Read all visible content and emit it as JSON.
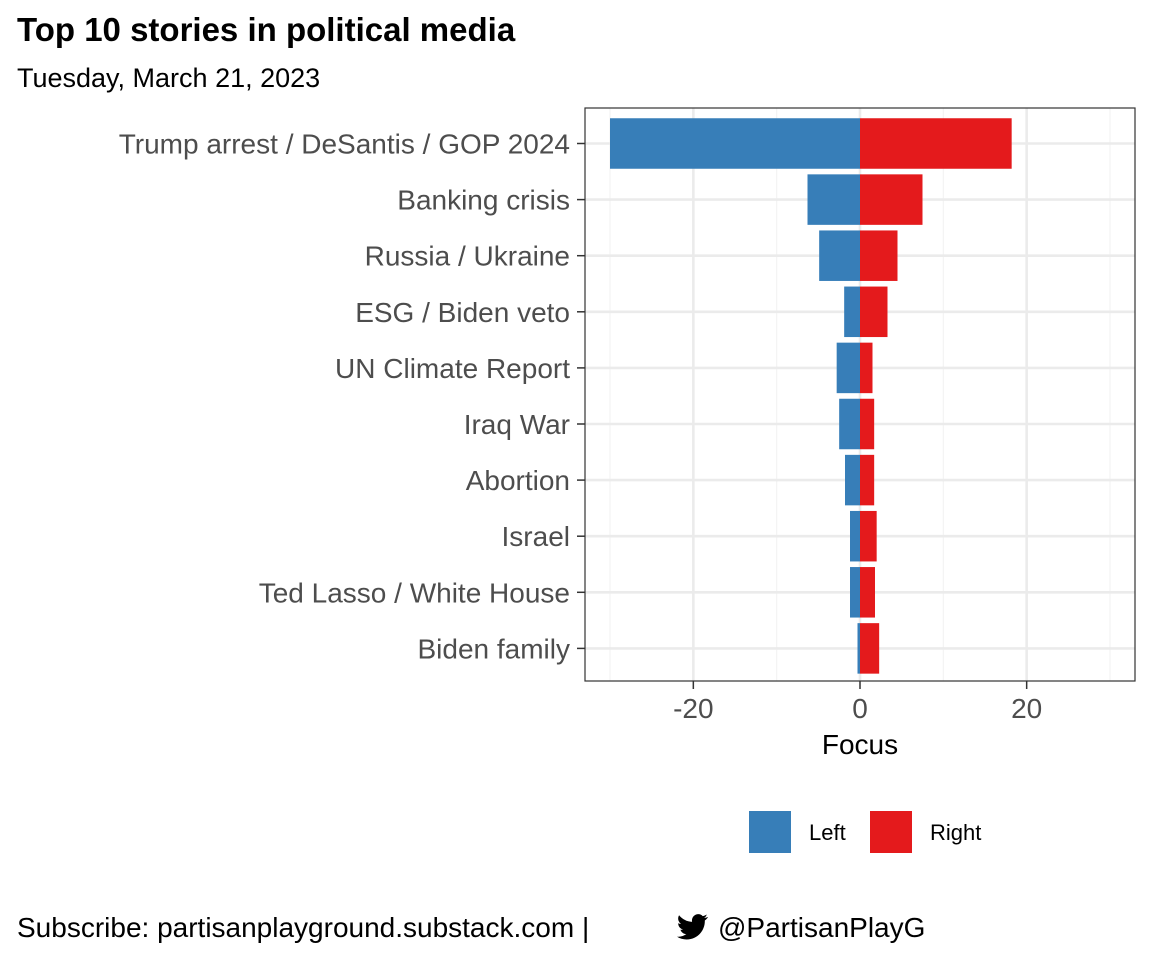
{
  "title": "Top 10 stories in political media",
  "subtitle": "Tuesday, March 21, 2023",
  "caption": {
    "prefix": "Subscribe: partisanplayground.substack.com |",
    "icon": "twitter-bird-icon",
    "handle": "@PartisanPlayG"
  },
  "chart_data": {
    "type": "bar",
    "orientation": "horizontal",
    "stacked": "diverging",
    "categories": [
      "Trump arrest / DeSantis / GOP 2024",
      "Banking crisis",
      "Russia / Ukraine",
      "ESG / Biden veto",
      "UN Climate Report",
      "Iraq War",
      "Abortion",
      "Israel",
      "Ted Lasso / White House",
      "Biden family"
    ],
    "series": [
      {
        "name": "Left",
        "color": "#377eb8",
        "values": [
          -30,
          -6.3,
          -4.9,
          -1.9,
          -2.8,
          -2.5,
          -1.8,
          -1.2,
          -1.2,
          -0.3
        ]
      },
      {
        "name": "Right",
        "color": "#e41a1c",
        "values": [
          18.2,
          7.5,
          4.5,
          3.3,
          1.5,
          1.7,
          1.7,
          2.0,
          1.8,
          2.3
        ]
      }
    ],
    "xlabel": "Focus",
    "ylabel": "",
    "xlim": [
      -33,
      33
    ],
    "xticks": [
      -20,
      0,
      20
    ],
    "grid": true,
    "legend": "bottom"
  }
}
